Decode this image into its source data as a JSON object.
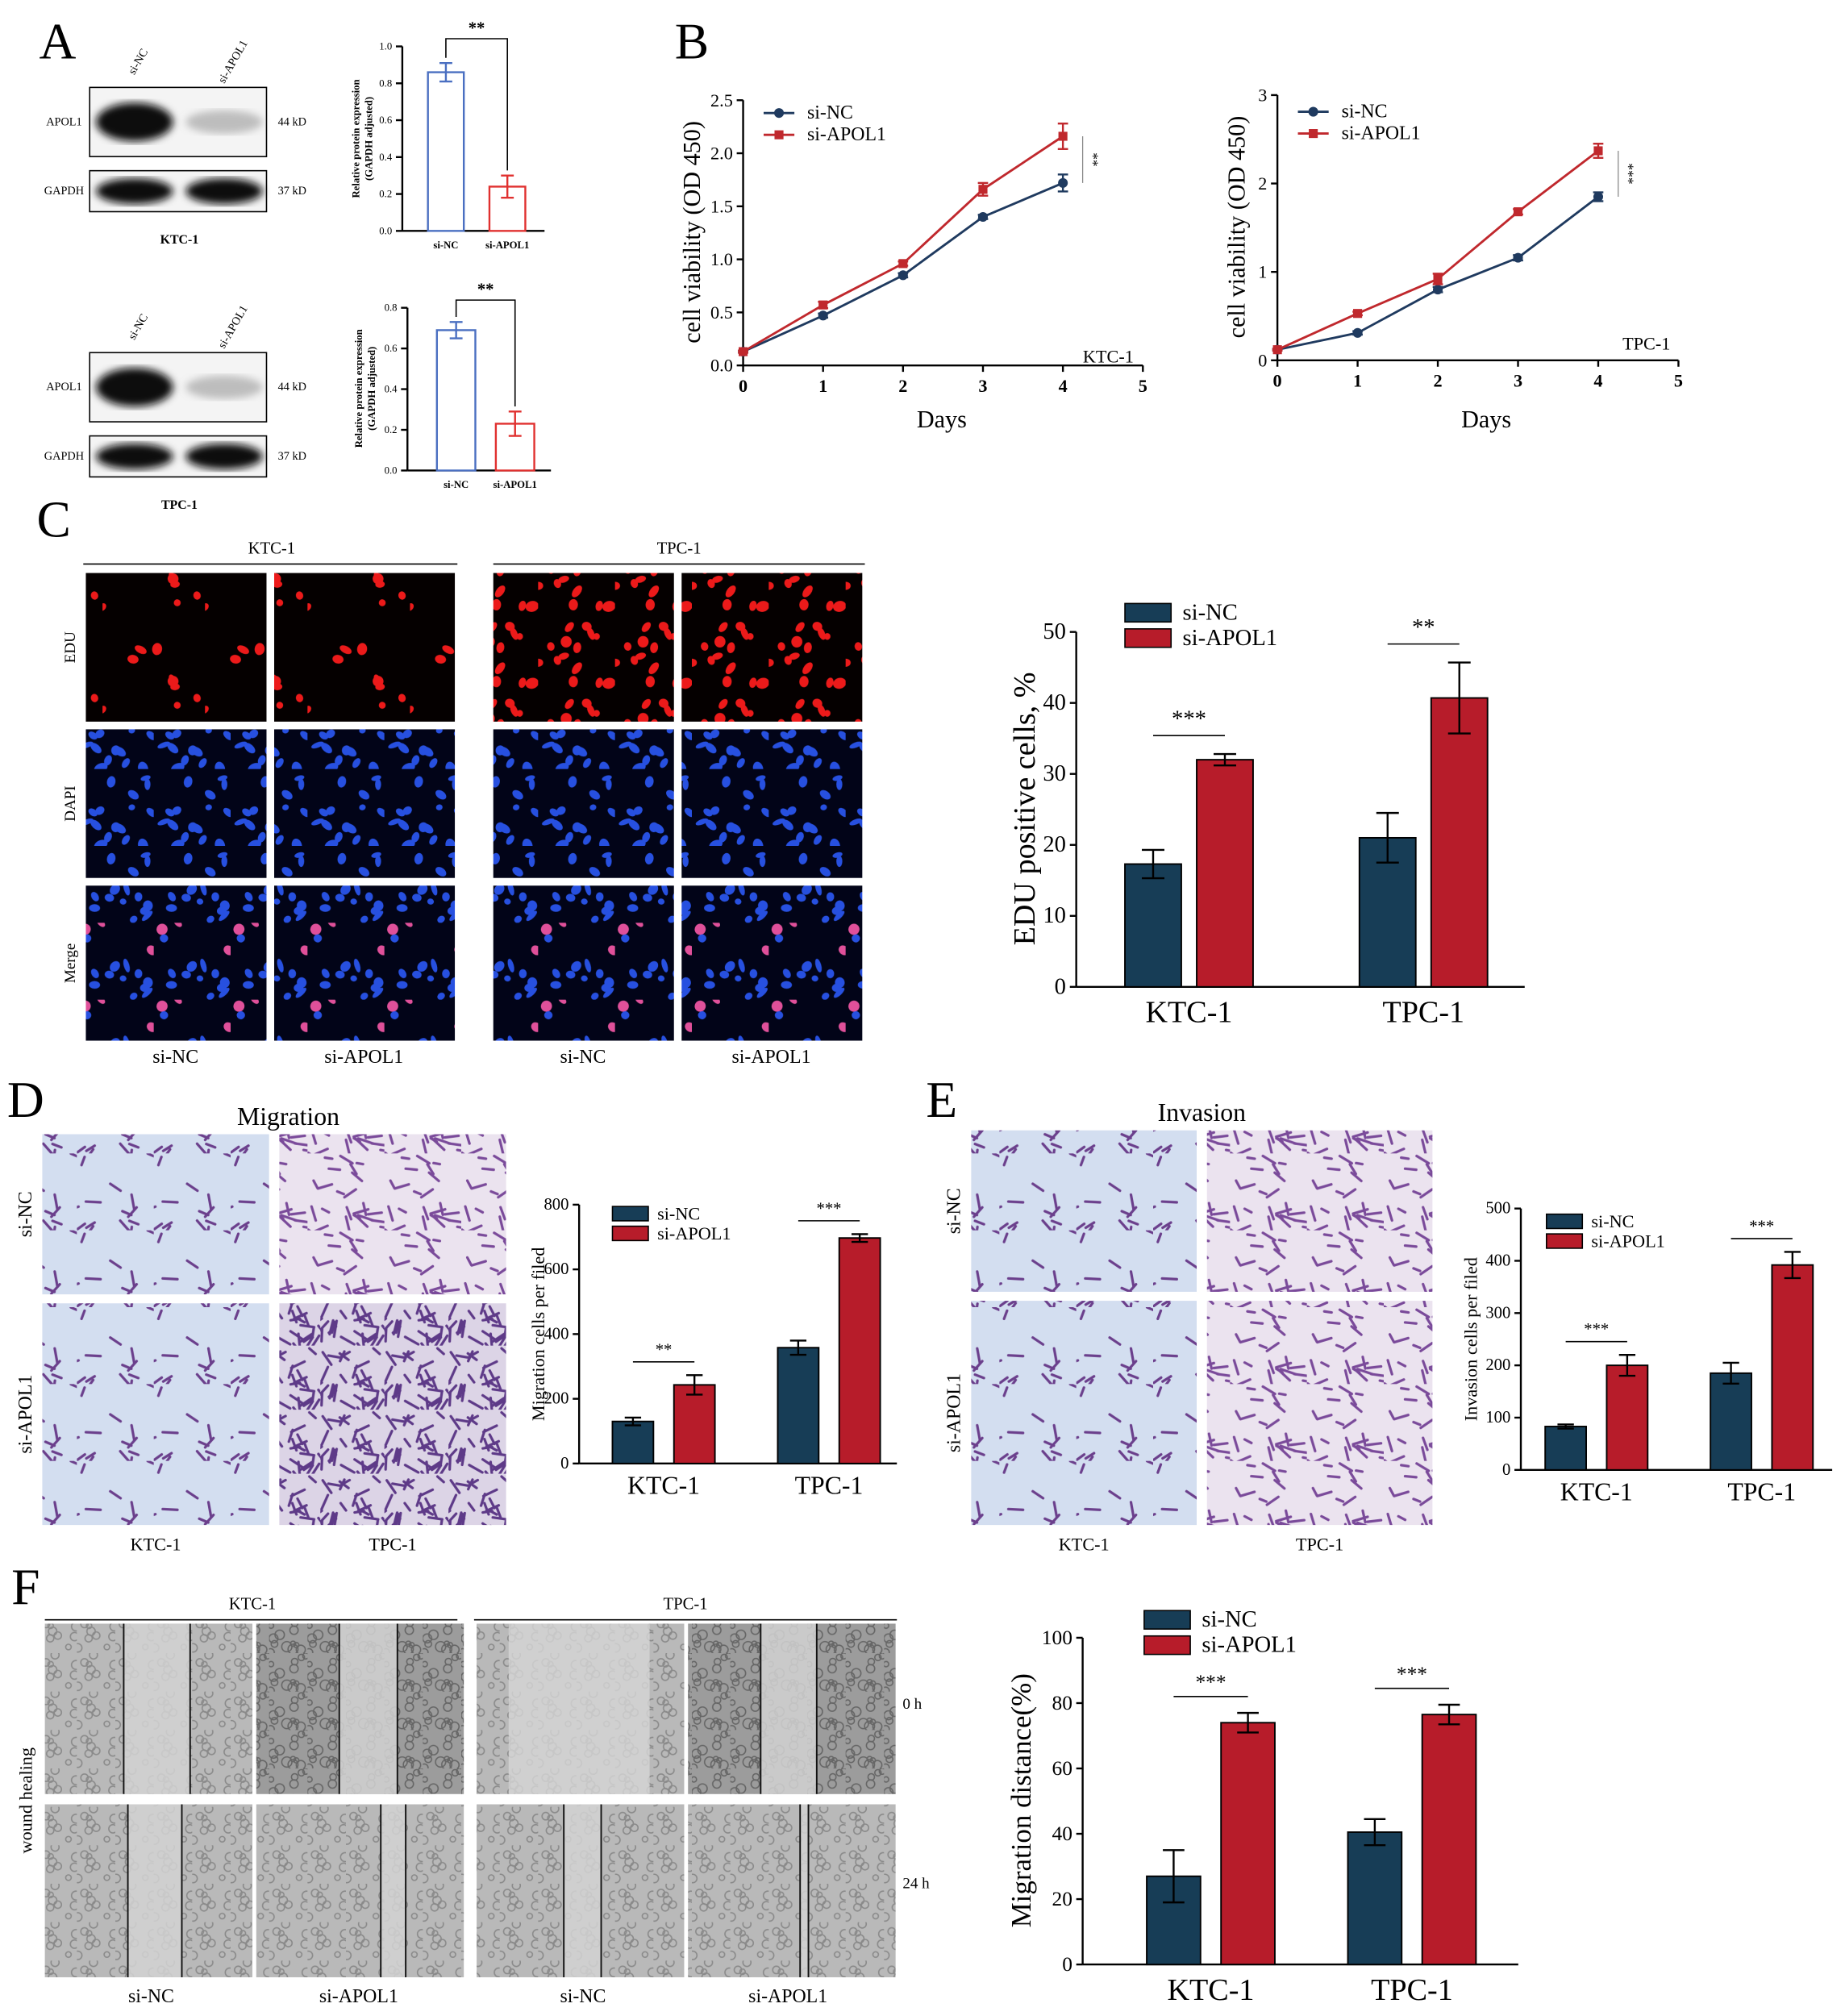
{
  "panel_letters": [
    "A",
    "B",
    "C",
    "D",
    "E",
    "F"
  ],
  "blots": [
    {
      "lanes": [
        "si-NC",
        "si-APOL1"
      ],
      "rows": [
        {
          "name": "APOL1",
          "size": "44 kD"
        },
        {
          "name": "GAPDH",
          "size": "37 kD"
        }
      ],
      "cell_line": "KTC-1"
    },
    {
      "lanes": [
        "si-NC",
        "si-APOL1"
      ],
      "rows": [
        {
          "name": "APOL1",
          "size": "44 kD"
        },
        {
          "name": "GAPDH",
          "size": "37 kD"
        }
      ],
      "cell_line": "TPC-1"
    }
  ],
  "edu": {
    "cell_lines": [
      "KTC-1",
      "TPC-1"
    ],
    "rows": [
      "EDU",
      "DAPI",
      "Merge"
    ],
    "columns": [
      "si-NC",
      "si-APOL1",
      "si-NC",
      "si-APOL1"
    ]
  },
  "migration": {
    "title": "Migration",
    "rows": [
      "si-NC",
      "si-APOL1"
    ],
    "columns": [
      "KTC-1",
      "TPC-1"
    ]
  },
  "invasion": {
    "title": "Invasion",
    "rows": [
      "si-NC",
      "si-APOL1"
    ],
    "columns": [
      "KTC-1",
      "TPC-1"
    ]
  },
  "wound": {
    "cell_lines": [
      "KTC-1",
      "TPC-1"
    ],
    "row_title": "wound healing",
    "times": [
      "0 h",
      "24 h"
    ],
    "columns": [
      "si-NC",
      "si-APOL1",
      "si-NC",
      "si-APOL1"
    ]
  },
  "chart_data": [
    {
      "type": "bar",
      "ylabel": [
        "Relative protein expression",
        "(GAPDH adjusted)"
      ],
      "categories": [
        "si-NC",
        "si-APOL1"
      ],
      "values": [
        0.86,
        0.24
      ],
      "errors": [
        0.05,
        0.06
      ],
      "colors": [
        "#4a6fc1",
        "#e0302f"
      ],
      "style": "outline",
      "ylim": [
        0,
        1
      ],
      "yticks": [
        {
          "value": 0,
          "label": "0.0"
        },
        0.2,
        0.4,
        0.6,
        0.8,
        {
          "value": 1,
          "label": "1.0"
        }
      ],
      "significance": "**"
    },
    {
      "type": "bar",
      "ylabel": [
        "Relative protein expression",
        "(GAPDH adjusted)"
      ],
      "categories": [
        "si-NC",
        "si-APOL1"
      ],
      "values": [
        0.69,
        0.23
      ],
      "errors": [
        0.04,
        0.06
      ],
      "colors": [
        "#4a6fc1",
        "#e0302f"
      ],
      "style": "outline",
      "ylim": [
        0,
        0.8
      ],
      "yticks": [
        {
          "value": 0,
          "label": "0.0"
        },
        0.2,
        0.4,
        0.6,
        0.8
      ],
      "significance": "**"
    },
    {
      "type": "line",
      "xlabel": "Days",
      "ylabel": "cell viability (OD 450)",
      "annotation": "KTC-1",
      "significance": "**",
      "x": [
        0,
        1,
        2,
        3,
        4
      ],
      "xlim": [
        0,
        5
      ],
      "xticks": [
        0,
        1,
        2,
        3,
        4,
        5
      ],
      "ylim": [
        0,
        2.5
      ],
      "yticks": [
        {
          "value": 0,
          "label": "0.0"
        },
        0.5,
        {
          "value": 1,
          "label": "1.0"
        },
        1.5,
        {
          "value": 2,
          "label": "2.0"
        },
        2.5
      ],
      "series": [
        {
          "name": "si-NC",
          "color": "#1f3a5f",
          "marker": "circle",
          "values": [
            0.13,
            0.47,
            0.85,
            1.4,
            1.72
          ],
          "errors": [
            0.01,
            0.02,
            0.02,
            0.02,
            0.08
          ]
        },
        {
          "name": "si-APOL1",
          "color": "#c0282d",
          "marker": "square",
          "values": [
            0.13,
            0.57,
            0.96,
            1.66,
            2.16
          ],
          "errors": [
            0.01,
            0.03,
            0.02,
            0.06,
            0.12
          ]
        }
      ]
    },
    {
      "type": "line",
      "xlabel": "Days",
      "ylabel": "cell viability (OD 450)",
      "annotation": "TPC-1",
      "significance": "***",
      "x": [
        0,
        1,
        2,
        3,
        4
      ],
      "xlim": [
        0,
        5
      ],
      "xticks": [
        0,
        1,
        2,
        3,
        4,
        5
      ],
      "ylim": [
        0,
        3
      ],
      "yticks": [
        0,
        1,
        2,
        3
      ],
      "series": [
        {
          "name": "si-NC",
          "color": "#1f3a5f",
          "marker": "circle",
          "values": [
            0.12,
            0.31,
            0.8,
            1.16,
            1.85
          ],
          "errors": [
            0.01,
            0.02,
            0.03,
            0.03,
            0.05
          ]
        },
        {
          "name": "si-APOL1",
          "color": "#c0282d",
          "marker": "square",
          "values": [
            0.12,
            0.53,
            0.92,
            1.68,
            2.37
          ],
          "errors": [
            0.01,
            0.02,
            0.06,
            0.03,
            0.08
          ]
        }
      ]
    },
    {
      "type": "bar",
      "ylabel": "EDU positive cells, %",
      "categories": [
        "KTC-1",
        "TPC-1"
      ],
      "ylim": [
        0,
        50
      ],
      "yticks": [
        0,
        10,
        20,
        30,
        40,
        50
      ],
      "significance": [
        "***",
        "**"
      ],
      "series": [
        {
          "name": "si-NC",
          "color": "#173d56",
          "values": [
            17.3,
            21
          ],
          "errors": [
            2,
            3.5
          ]
        },
        {
          "name": "si-APOL1",
          "color": "#b71c2a",
          "values": [
            32,
            40.7
          ],
          "errors": [
            0.8,
            5
          ]
        }
      ]
    },
    {
      "type": "bar",
      "ylabel": "Migration cells per filed",
      "categories": [
        "KTC-1",
        "TPC-1"
      ],
      "ylim": [
        0,
        800
      ],
      "yticks": [
        0,
        200,
        400,
        600,
        800
      ],
      "significance": [
        "**",
        "***"
      ],
      "series": [
        {
          "name": "si-NC",
          "color": "#173d56",
          "values": [
            130,
            358
          ],
          "errors": [
            12,
            22
          ]
        },
        {
          "name": "si-APOL1",
          "color": "#b71c2a",
          "values": [
            243,
            697
          ],
          "errors": [
            30,
            12
          ]
        }
      ]
    },
    {
      "type": "bar",
      "ylabel": "Invasion cells per filed",
      "categories": [
        "KTC-1",
        "TPC-1"
      ],
      "ylim": [
        0,
        500
      ],
      "yticks": [
        0,
        100,
        200,
        300,
        400,
        500
      ],
      "significance": [
        "***",
        "***"
      ],
      "series": [
        {
          "name": "si-NC",
          "color": "#173d56",
          "values": [
            83,
            185
          ],
          "errors": [
            4,
            20
          ]
        },
        {
          "name": "si-APOL1",
          "color": "#b71c2a",
          "values": [
            200,
            392
          ],
          "errors": [
            20,
            25
          ]
        }
      ]
    },
    {
      "type": "bar",
      "ylabel": "Migration distance(%)",
      "categories": [
        "KTC-1",
        "TPC-1"
      ],
      "ylim": [
        0,
        100
      ],
      "yticks": [
        0,
        20,
        40,
        60,
        80,
        100
      ],
      "significance": [
        "***",
        "***"
      ],
      "series": [
        {
          "name": "si-NC",
          "color": "#173d56",
          "values": [
            27,
            40.5
          ],
          "errors": [
            8,
            4
          ]
        },
        {
          "name": "si-APOL1",
          "color": "#b71c2a",
          "values": [
            74,
            76.5
          ],
          "errors": [
            3,
            3
          ]
        }
      ]
    }
  ]
}
